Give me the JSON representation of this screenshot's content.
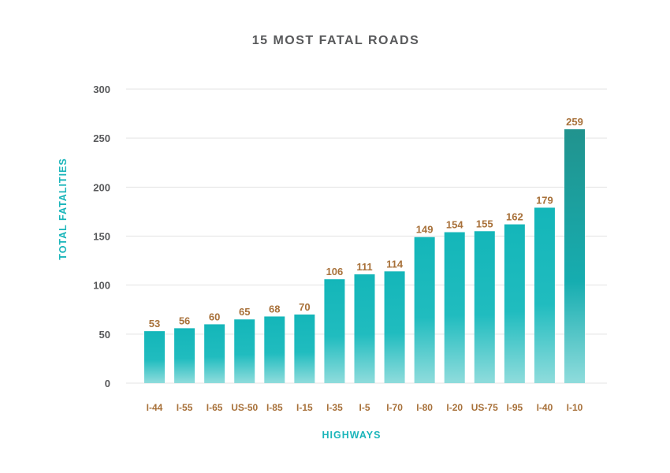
{
  "chart_data": {
    "type": "bar",
    "title": "15 MOST FATAL ROADS",
    "xlabel": "HIGHWAYS",
    "ylabel": "TOTAL FATALITIES",
    "categories": [
      "I-44",
      "I-55",
      "I-65",
      "US-50",
      "I-85",
      "I-15",
      "I-35",
      "I-5",
      "I-70",
      "I-80",
      "I-20",
      "US-75",
      "I-95",
      "I-40",
      "I-10"
    ],
    "values": [
      53,
      56,
      60,
      65,
      68,
      70,
      106,
      111,
      114,
      149,
      154,
      155,
      162,
      179,
      259
    ],
    "yticks": [
      0,
      50,
      100,
      150,
      200,
      250,
      300
    ],
    "ylim": [
      0,
      300
    ],
    "grid": true,
    "legend": "none",
    "colors": {
      "bar_top": "#14b6b9",
      "bar_bottom": "#8fdcdc",
      "highlight_top": "#21938e",
      "highlight_bottom": "#1ab5b6",
      "label": "#a8713a",
      "axis_title": "#1ab5ba",
      "tick": "#58595b"
    }
  }
}
